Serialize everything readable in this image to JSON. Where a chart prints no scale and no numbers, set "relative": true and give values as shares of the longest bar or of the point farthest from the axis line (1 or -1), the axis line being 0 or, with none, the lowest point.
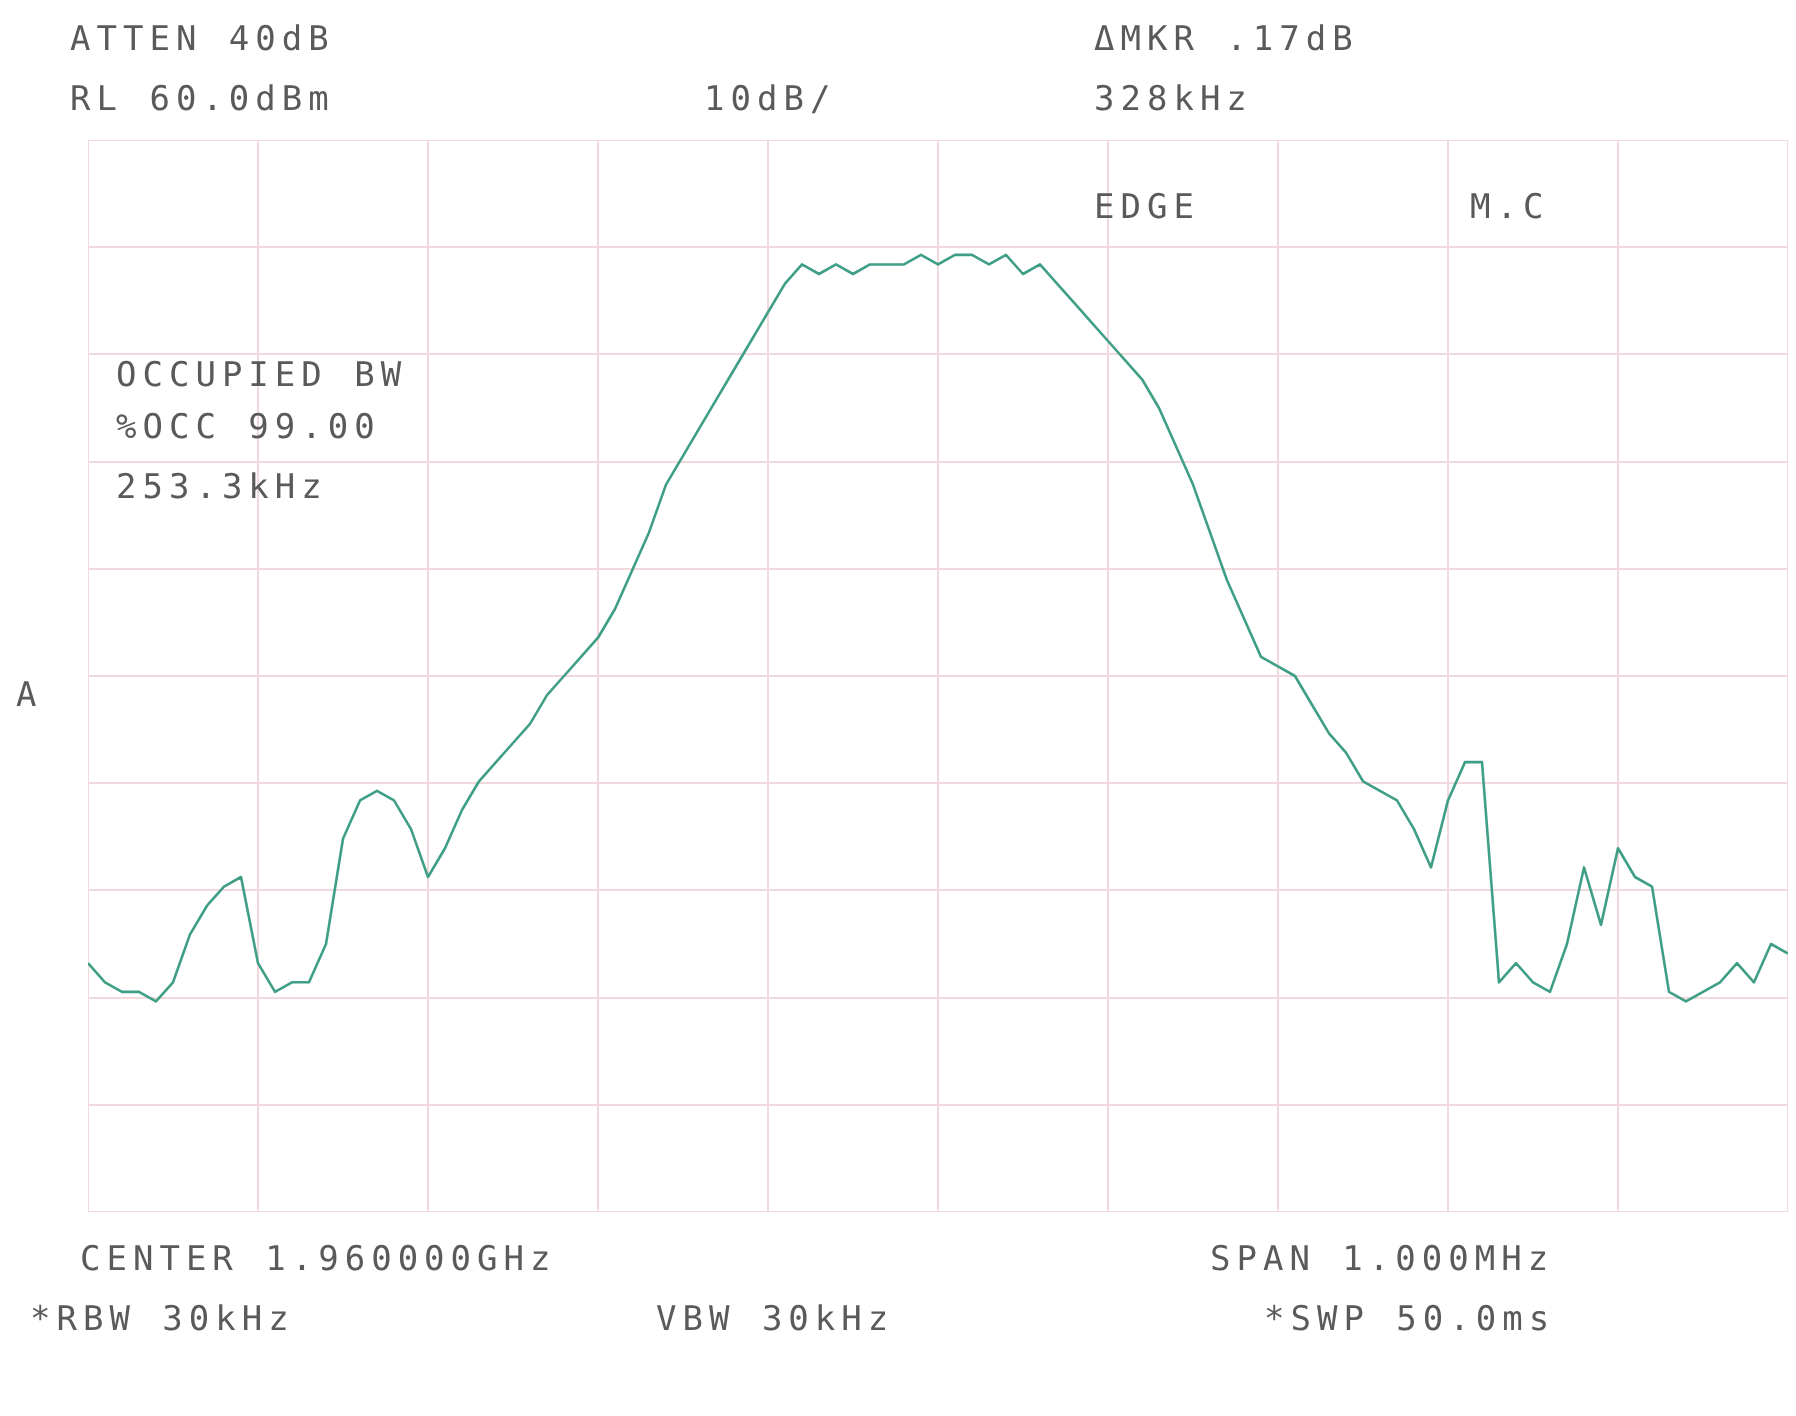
{
  "chart_data": {
    "type": "line",
    "relative": true,
    "tick_labels": false,
    "grid": true,
    "color": "#3f9e86",
    "categories": [
      null,
      null,
      null,
      null,
      null,
      null,
      null,
      null,
      null,
      null,
      null,
      null,
      null,
      null,
      null,
      null,
      null,
      null,
      null,
      null,
      null,
      null,
      null,
      null,
      null,
      null,
      null,
      null,
      null,
      null,
      null,
      null,
      null,
      null,
      null,
      null,
      null,
      null,
      null,
      null,
      null,
      null,
      null,
      null,
      null,
      null,
      null,
      null,
      null,
      null,
      null,
      null,
      null,
      null,
      null,
      null,
      null,
      null,
      null,
      null,
      null,
      null,
      null,
      null,
      null,
      null,
      null,
      null,
      null,
      null,
      null,
      null,
      null,
      null,
      null,
      null,
      null,
      null,
      null,
      null,
      null,
      null,
      null,
      null,
      null,
      null,
      null,
      null,
      null,
      null,
      null,
      null,
      null,
      null,
      null,
      null,
      null,
      null,
      null,
      null,
      null
    ],
    "values": [
      0.26,
      0.24,
      0.23,
      0.23,
      0.22,
      0.24,
      0.29,
      0.32,
      0.34,
      0.35,
      0.26,
      0.23,
      0.24,
      0.24,
      0.28,
      0.39,
      0.43,
      0.44,
      0.43,
      0.4,
      0.35,
      0.38,
      0.42,
      0.45,
      0.47,
      0.49,
      0.51,
      0.54,
      0.56,
      0.58,
      0.6,
      0.63,
      0.67,
      0.71,
      0.76,
      0.79,
      0.82,
      0.85,
      0.88,
      0.91,
      0.94,
      0.97,
      0.99,
      0.98,
      0.99,
      0.98,
      0.99,
      0.99,
      0.99,
      1.0,
      0.99,
      1.0,
      1.0,
      0.99,
      1.0,
      0.98,
      0.99,
      0.97,
      0.95,
      0.93,
      0.91,
      0.89,
      0.87,
      0.84,
      0.8,
      0.76,
      0.71,
      0.66,
      0.62,
      0.58,
      0.57,
      0.56,
      0.53,
      0.5,
      0.48,
      0.45,
      0.44,
      0.43,
      0.4,
      0.36,
      0.43,
      0.47,
      0.47,
      0.24,
      0.26,
      0.24,
      0.23,
      0.28,
      0.36,
      0.3,
      0.38,
      0.35,
      0.34,
      0.23,
      0.22,
      0.23,
      0.24,
      0.26,
      0.24,
      0.28,
      0.27
    ],
    "annotations": [
      "ATTEN 40dB",
      "RL 60.0dBm",
      "10dB/",
      "ΔMKR .17dB",
      "328kHz",
      "EDGE",
      "M.C",
      "OCCUPIED BW",
      "%OCC 99.00",
      "253.3kHz",
      "A",
      "CENTER 1.960000GHz",
      "SPAN 1.000MHz",
      "*RBW 30kHz",
      "VBW 30kHz",
      "*SWP 50.0ms"
    ]
  }
}
